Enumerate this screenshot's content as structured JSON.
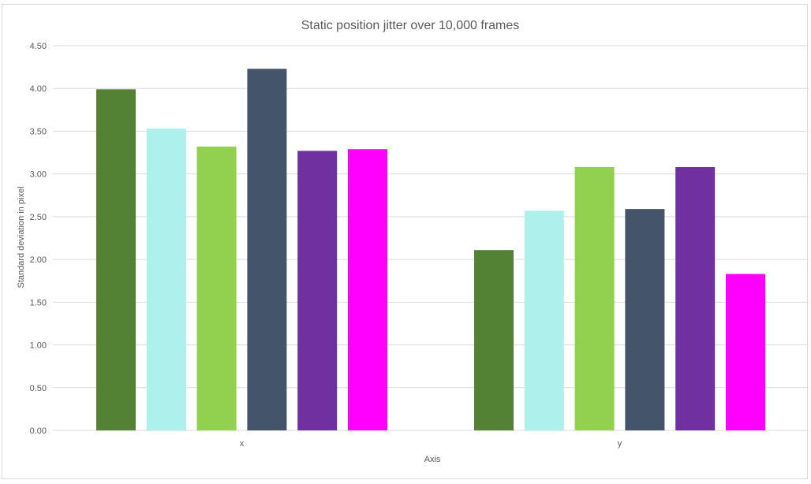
{
  "chart_data": {
    "type": "bar",
    "title": "Static position jitter over 10,000 frames",
    "xlabel": "Axis",
    "ylabel": "Standard deviation in pixel",
    "categories": [
      "x",
      "y"
    ],
    "ylim": [
      0,
      4.5
    ],
    "yticks": [
      "0.00",
      "0.50",
      "1.00",
      "1.50",
      "2.00",
      "2.50",
      "3.00",
      "3.50",
      "4.00",
      "4.50"
    ],
    "grid": true,
    "legend": "none",
    "series": [
      {
        "color": "#548235",
        "values": [
          3.99,
          2.11
        ]
      },
      {
        "color": "#AEF0EC",
        "values": [
          3.53,
          2.57
        ]
      },
      {
        "color": "#92D050",
        "values": [
          3.32,
          3.08
        ]
      },
      {
        "color": "#44546A",
        "values": [
          4.23,
          2.59
        ]
      },
      {
        "color": "#7030A0",
        "values": [
          3.27,
          3.08
        ]
      },
      {
        "color": "#FF00FF",
        "values": [
          3.29,
          1.83
        ]
      }
    ]
  }
}
